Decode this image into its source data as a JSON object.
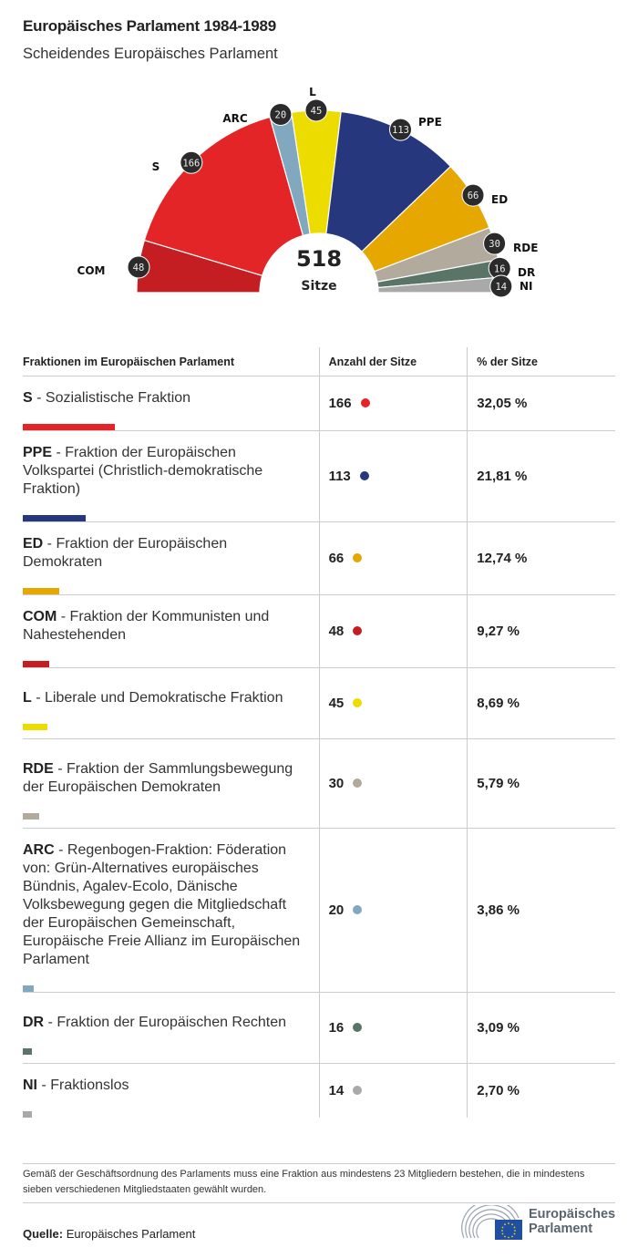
{
  "header": {
    "title": "Europäisches Parlament 1984-1989",
    "subtitle": "Scheidendes Europäisches Parlament"
  },
  "chart_data": {
    "type": "pie",
    "variant": "parliament-hemicycle",
    "title": "Europäisches Parlament 1984-1989",
    "subtitle": "Scheidendes Europäisches Parlament",
    "total": 518,
    "total_label": "Sitze",
    "order": "left-to-right",
    "segments": [
      {
        "label": "COM",
        "value": 48,
        "color": "#c41e22"
      },
      {
        "label": "S",
        "value": 166,
        "color": "#e42528"
      },
      {
        "label": "ARC",
        "value": 20,
        "color": "#82a8c0"
      },
      {
        "label": "L",
        "value": 45,
        "color": "#ecdc00"
      },
      {
        "label": "PPE",
        "value": 113,
        "color": "#27377d"
      },
      {
        "label": "ED",
        "value": 66,
        "color": "#e6a800"
      },
      {
        "label": "RDE",
        "value": 30,
        "color": "#b3aa9e"
      },
      {
        "label": "DR",
        "value": 16,
        "color": "#5a7468"
      },
      {
        "label": "NI",
        "value": 14,
        "color": "#a9a9a9"
      }
    ]
  },
  "table": {
    "headers": [
      "Fraktionen im Europäischen Parlament",
      "Anzahl der Sitze",
      "% der Sitze"
    ],
    "rows": [
      {
        "abbr": "S",
        "name": "Sozialistische Fraktion",
        "seats": "166",
        "percent": "32,05 %",
        "share": 0.3205,
        "color": "#e42528"
      },
      {
        "abbr": "PPE",
        "name": "Fraktion der Europäischen Volkspartei (Christlich-demokratische Fraktion)",
        "seats": "113",
        "percent": "21,81 %",
        "share": 0.2181,
        "color": "#27377d"
      },
      {
        "abbr": "ED",
        "name": "Fraktion der Europäischen Demokraten",
        "seats": "66",
        "percent": "12,74 %",
        "share": 0.1274,
        "color": "#e6a800"
      },
      {
        "abbr": "COM",
        "name": "Fraktion der Kommunisten und Nahestehenden",
        "seats": "48",
        "percent": "9,27 %",
        "share": 0.0927,
        "color": "#c41e22"
      },
      {
        "abbr": "L",
        "name": "Liberale und Demokratische Fraktion",
        "seats": "45",
        "percent": "8,69 %",
        "share": 0.0869,
        "color": "#ecdc00"
      },
      {
        "abbr": "RDE",
        "name": "Fraktion der Sammlungsbewegung der Europäischen Demokraten",
        "seats": "30",
        "percent": "5,79 %",
        "share": 0.0579,
        "color": "#b3aa9e"
      },
      {
        "abbr": "ARC",
        "name": "Regenbogen-Fraktion: Föderation von: Grün-Alternatives europäisches Bündnis, Agalev-Ecolo, Dänische Volksbewegung gegen die Mitgliedschaft der Europäischen Gemeinschaft, Europäische Freie Allianz im Europäischen Parlament",
        "seats": "20",
        "percent": "3,86 %",
        "share": 0.0386,
        "color": "#82a8c0"
      },
      {
        "abbr": "DR",
        "name": "Fraktion der Europäischen Rechten",
        "seats": "16",
        "percent": "3,09 %",
        "share": 0.0309,
        "color": "#5a7468"
      },
      {
        "abbr": "NI",
        "name": "Fraktionslos",
        "seats": "14",
        "percent": "2,70 %",
        "share": 0.027,
        "color": "#a9a9a9"
      }
    ],
    "separator": " - "
  },
  "footer": {
    "note": "Gemäß der Geschäftsordnung des Parlaments muss eine Fraktion aus mindestens 23 Mitgliedern bestehen, die in mindestens sieben verschiedenen Mitgliedstaaten gewählt wurden.",
    "source_label": "Quelle:",
    "source_value": "Europäisches Parlament",
    "logo_line1": "Europäisches",
    "logo_line2": "Parlament",
    "logo_icon": "hemicycle-eu-flag-icon"
  }
}
